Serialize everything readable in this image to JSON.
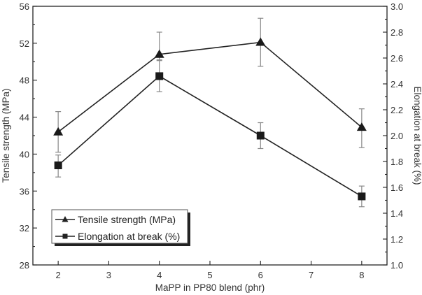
{
  "chart_data": {
    "type": "line",
    "title": "",
    "xlabel": "MaPP in PP80 blend (phr)",
    "ylabel": "Tensile strength (MPa)",
    "y2label": "Elongation at break (%)",
    "xlim": [
      1.5,
      8.5
    ],
    "ylim": [
      28,
      56
    ],
    "y2lim": [
      1.0,
      3.0
    ],
    "x_ticks": [
      2,
      3,
      4,
      5,
      6,
      7,
      8
    ],
    "y_ticks": [
      28,
      32,
      36,
      40,
      44,
      48,
      52,
      56
    ],
    "y2_ticks": [
      "1.0",
      "1.2",
      "1.4",
      "1.6",
      "1.8",
      "2.0",
      "2.2",
      "2.4",
      "2.6",
      "2.8",
      "3.0"
    ],
    "grid": false,
    "legend_position": "lower left (inside)",
    "x": [
      2,
      4,
      6,
      8
    ],
    "series": [
      {
        "name": "Tensile strength (MPa)",
        "axis": "left",
        "marker": "triangle",
        "values": [
          42.4,
          50.8,
          52.1,
          42.9
        ],
        "error_low": [
          40.2,
          50.2,
          49.5,
          40.7
        ],
        "error_high": [
          44.6,
          53.2,
          54.7,
          44.9
        ]
      },
      {
        "name": "Elongation at break (%)",
        "axis": "right",
        "marker": "square",
        "values": [
          1.77,
          2.46,
          2.0,
          1.53
        ],
        "error_low": [
          1.68,
          2.34,
          1.9,
          1.45
        ],
        "error_high": [
          1.85,
          2.58,
          2.1,
          1.61
        ]
      }
    ]
  },
  "colors": {
    "line": "#222222",
    "error_bar": "#888888",
    "background": "#ffffff"
  }
}
